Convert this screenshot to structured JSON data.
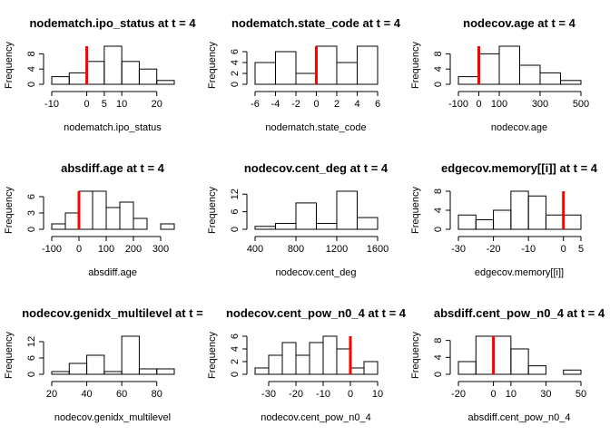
{
  "chart_data": [
    {
      "type": "histogram",
      "title": "nodematch.ipo_status at t = 4",
      "xlabel": "nodematch.ipo_status",
      "ylabel": "Frequency",
      "bins": [
        -10,
        -5,
        0,
        5,
        10,
        15,
        20,
        25
      ],
      "values": [
        2,
        3,
        6,
        10,
        6,
        4,
        1
      ],
      "xlim": [
        -10,
        25
      ],
      "ylim": [
        0,
        10
      ],
      "xticks": [
        -10,
        0,
        5,
        10,
        20
      ],
      "yticks": [
        0,
        4,
        8
      ],
      "reference_line": 0,
      "reference_color": "#ff0000"
    },
    {
      "type": "histogram",
      "title": "nodematch.state_code at t = 4",
      "xlabel": "nodematch.state_code",
      "ylabel": "Frequency",
      "bins": [
        -6,
        -4,
        -2,
        0,
        2,
        4,
        6
      ],
      "values": [
        4,
        6,
        2,
        7,
        4,
        7
      ],
      "xlim": [
        -6,
        6
      ],
      "ylim": [
        0,
        7
      ],
      "xticks": [
        -6,
        -4,
        -2,
        0,
        2,
        4,
        6
      ],
      "yticks": [
        0,
        2,
        4,
        6
      ],
      "reference_line": 0,
      "reference_color": "#ff0000"
    },
    {
      "type": "histogram",
      "title": "nodecov.age at t = 4",
      "xlabel": "nodecov.age",
      "ylabel": "Frequency",
      "bins": [
        -100,
        0,
        100,
        200,
        300,
        400,
        500
      ],
      "values": [
        2,
        8,
        10,
        5,
        3,
        1
      ],
      "xlim": [
        -100,
        500
      ],
      "ylim": [
        0,
        10
      ],
      "xticks": [
        -100,
        0,
        100,
        300,
        500
      ],
      "yticks": [
        0,
        4,
        8
      ],
      "reference_line": 0,
      "reference_color": "#ff0000"
    },
    {
      "type": "histogram",
      "title": "absdiff.age at t = 4",
      "xlabel": "absdiff.age",
      "ylabel": "Frequency",
      "bins": [
        -100,
        -50,
        0,
        50,
        100,
        150,
        200,
        250,
        300,
        350
      ],
      "values": [
        1,
        3,
        7,
        7,
        4,
        5,
        2,
        0,
        1
      ],
      "xlim": [
        -100,
        350
      ],
      "ylim": [
        0,
        7
      ],
      "xticks": [
        -100,
        0,
        100,
        200,
        300
      ],
      "yticks": [
        0,
        3,
        6
      ],
      "reference_line": 0,
      "reference_color": "#ff0000"
    },
    {
      "type": "histogram",
      "title": "nodecov.cent_deg at t = 4",
      "xlabel": "nodecov.cent_deg",
      "ylabel": "Frequency",
      "bins": [
        400,
        600,
        800,
        1000,
        1200,
        1400,
        1600
      ],
      "values": [
        1,
        2,
        9,
        2,
        13,
        4
      ],
      "xlim": [
        400,
        1600
      ],
      "ylim": [
        0,
        13
      ],
      "xticks": [
        400,
        800,
        1200,
        1600
      ],
      "yticks": [
        0,
        6,
        12
      ]
    },
    {
      "type": "histogram",
      "title": "edgecov.memory[[i]] at t = 4",
      "xlabel": "edgecov.memory[[i]]",
      "ylabel": "Frequency",
      "bins": [
        -30,
        -25,
        -20,
        -15,
        -10,
        -5,
        0,
        5
      ],
      "values": [
        3,
        2,
        4,
        8,
        7,
        3,
        3
      ],
      "xlim": [
        -30,
        5
      ],
      "ylim": [
        0,
        8
      ],
      "xticks": [
        -30,
        -20,
        -10,
        0,
        5
      ],
      "yticks": [
        0,
        4,
        8
      ],
      "reference_line": 0,
      "reference_color": "#ff0000"
    },
    {
      "type": "histogram",
      "title": "nodecov.genidx_multilevel at t =",
      "xlabel": "nodecov.genidx_multilevel",
      "ylabel": "Frequency",
      "bins": [
        20,
        30,
        40,
        50,
        60,
        70,
        80,
        90
      ],
      "values": [
        1,
        4,
        7,
        1,
        14,
        2,
        2
      ],
      "xlim": [
        20,
        90
      ],
      "ylim": [
        0,
        14
      ],
      "xticks": [
        20,
        40,
        60,
        80
      ],
      "yticks": [
        0,
        6,
        12
      ]
    },
    {
      "type": "histogram",
      "title": "nodecov.cent_pow_n0_4 at t = 4",
      "xlabel": "nodecov.cent_pow_n0_4",
      "ylabel": "Frequency",
      "bins": [
        -35,
        -30,
        -25,
        -20,
        -15,
        -10,
        -5,
        0,
        5,
        10
      ],
      "values": [
        1,
        3,
        5,
        3,
        5,
        6,
        4,
        1,
        2
      ],
      "xlim": [
        -35,
        10
      ],
      "ylim": [
        0,
        6
      ],
      "xticks": [
        -30,
        -20,
        -10,
        0,
        10
      ],
      "yticks": [
        0,
        2,
        4,
        6
      ],
      "reference_line": 0,
      "reference_color": "#ff0000"
    },
    {
      "type": "histogram",
      "title": "absdiff.cent_pow_n0_4 at t = 4",
      "xlabel": "absdiff.cent_pow_n0_4",
      "ylabel": "Frequency",
      "bins": [
        -20,
        -10,
        0,
        10,
        20,
        30,
        40,
        50
      ],
      "values": [
        3,
        9,
        9,
        6,
        2,
        0,
        1
      ],
      "xlim": [
        -20,
        50
      ],
      "ylim": [
        0,
        9
      ],
      "xticks": [
        -20,
        0,
        10,
        30,
        50
      ],
      "yticks": [
        0,
        4,
        8
      ],
      "reference_line": 0,
      "reference_color": "#ff0000"
    }
  ]
}
